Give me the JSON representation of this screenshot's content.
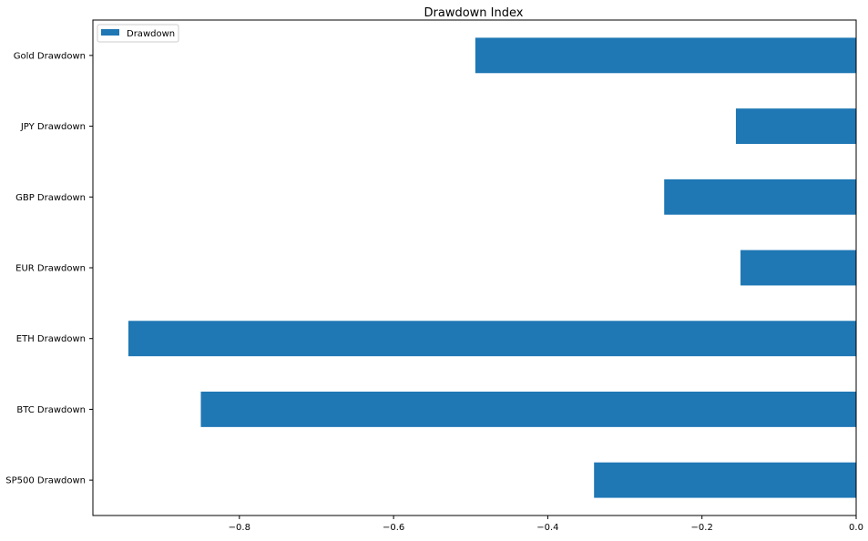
{
  "chart_data": {
    "type": "bar",
    "orientation": "horizontal",
    "title": "Drawdown Index",
    "xlabel": "",
    "ylabel": "",
    "categories": [
      "SP500 Drawdown",
      "BTC Drawdown",
      "ETH Drawdown",
      "EUR Drawdown",
      "GBP Drawdown",
      "JPY Drawdown",
      "Gold Drawdown"
    ],
    "series": [
      {
        "name": "Drawdown",
        "color": "#1f77b4",
        "values": [
          -0.34,
          -0.85,
          -0.944,
          -0.15,
          -0.249,
          -0.156,
          -0.494
        ]
      }
    ],
    "xlim": [
      -0.99,
      0.0
    ],
    "xticks": [
      -0.8,
      -0.6,
      -0.4,
      -0.2,
      0.0
    ],
    "xtick_labels": [
      "−0.8",
      "−0.6",
      "−0.4",
      "−0.2",
      "0.0"
    ],
    "grid": false,
    "legend_position": "upper-left"
  }
}
